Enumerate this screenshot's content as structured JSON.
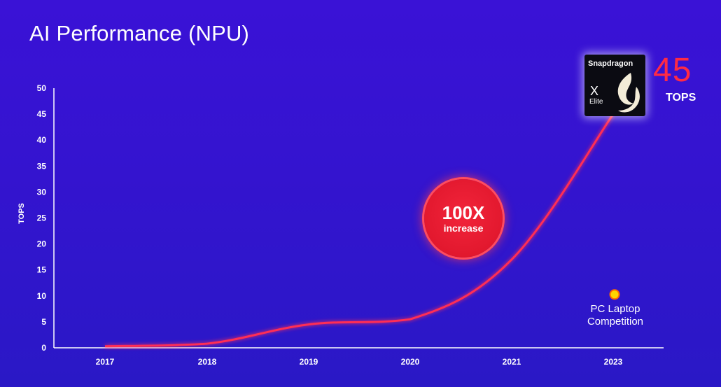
{
  "title": "AI Performance (NPU)",
  "chart_data": {
    "type": "line",
    "title": "AI Performance (NPU)",
    "ylabel": "TOPS",
    "xlabel": "",
    "ylim": [
      0,
      50
    ],
    "yticks": [
      0,
      5,
      10,
      15,
      20,
      25,
      30,
      35,
      40,
      45,
      50
    ],
    "categories": [
      "2017",
      "2018",
      "2019",
      "2020",
      "2021",
      "2023"
    ],
    "series": [
      {
        "name": "",
        "color": "#ff2d55",
        "points": [
          {
            "x": "2017",
            "y": 0.3
          },
          {
            "x": "2018",
            "y": 0.8
          },
          {
            "x": "2019",
            "y": 4.5
          },
          {
            "x": "2020",
            "y": 5.5
          },
          {
            "x": "2021",
            "y": 17
          },
          {
            "x": "2023",
            "y": 45
          }
        ]
      }
    ],
    "marker": {
      "label": "PC Laptop Competition",
      "x": "2023",
      "y": 10,
      "color": "#ffd400"
    },
    "grid": false,
    "legend": "none"
  },
  "callout": {
    "main": "100X",
    "sub": "increase",
    "color": "#e2182e"
  },
  "chip": {
    "brand": "Snapdragon",
    "x_text": "X",
    "line": "Elite",
    "icon": "snapdragon-flame-icon"
  },
  "highlight": {
    "value": "45",
    "unit": "TOPS",
    "color": "#ff2a45"
  },
  "competition": {
    "line1": "PC Laptop",
    "line2": "Competition"
  }
}
